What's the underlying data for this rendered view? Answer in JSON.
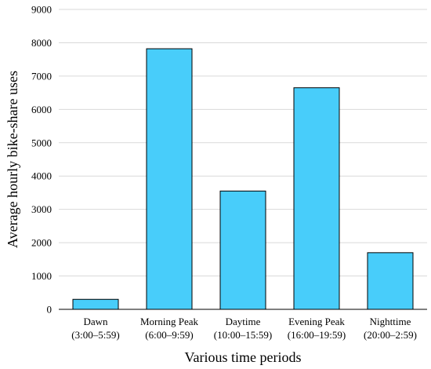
{
  "chart_data": {
    "type": "bar",
    "categories": [
      {
        "name": "Dawn",
        "range": "(3:00–5:59)"
      },
      {
        "name": "Morning Peak",
        "range": "(6:00–9:59)"
      },
      {
        "name": "Daytime",
        "range": "(10:00–15:59)"
      },
      {
        "name": "Evening Peak",
        "range": "(16:00–19:59)"
      },
      {
        "name": "Nighttime",
        "range": "(20:00–2:59)"
      }
    ],
    "values": [
      300,
      7820,
      3550,
      6650,
      1700
    ],
    "title": "",
    "xlabel": "Various time periods",
    "ylabel": "Average hourly bike-share uses",
    "ylim": [
      0,
      9000
    ],
    "yticks": [
      0,
      1000,
      2000,
      3000,
      4000,
      5000,
      6000,
      7000,
      8000,
      9000
    ],
    "grid": "horizontal",
    "colors": {
      "bar": "#48cdfa",
      "edge": "#000000",
      "grid": "#d9d9d9"
    }
  }
}
